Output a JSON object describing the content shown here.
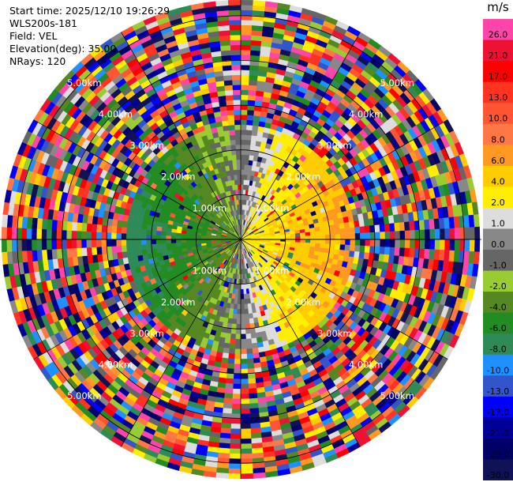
{
  "header": {
    "lines": [
      "Start time: 2025/12/10 19:26:29",
      "WLS200s-181",
      "Field: VEL",
      "Elevation(deg): 35.00",
      "NRays: 120"
    ]
  },
  "chart_data": {
    "type": "heatmap",
    "subtype": "ppi-radar",
    "field": "VEL",
    "elevation_deg": 35.0,
    "nrays": 120,
    "unit": "m/s",
    "range_rings_km": [
      1.0,
      2.0,
      3.0,
      4.0,
      5.0
    ],
    "range_labels": [
      "1.00km",
      "2.00km",
      "3.00km",
      "4.00km",
      "5.00km"
    ],
    "colorbar": {
      "ticks": [
        "26.0",
        "21.0",
        "17.0",
        "13.0",
        "10.0",
        "8.0",
        "6.0",
        "4.0",
        "2.0",
        "1.0",
        "0.0",
        "-1.0",
        "-2.0",
        "-4.0",
        "-6.0",
        "-8.0",
        "-10.0",
        "-13.0",
        "-17.0",
        "-21.0",
        "-26.0",
        "-30.0"
      ],
      "colors": [
        "#ff44aa",
        "#ee1133",
        "#ff0000",
        "#ff3322",
        "#ff5533",
        "#ff7744",
        "#ff9922",
        "#ffcc00",
        "#ffee00",
        "#dddddd",
        "#888888",
        "#666666",
        "#99cc33",
        "#558822",
        "#228b22",
        "#2e8b57",
        "#1e90ff",
        "#3355cc",
        "#0000ff",
        "#000099",
        "#000066",
        "#111155"
      ]
    }
  }
}
